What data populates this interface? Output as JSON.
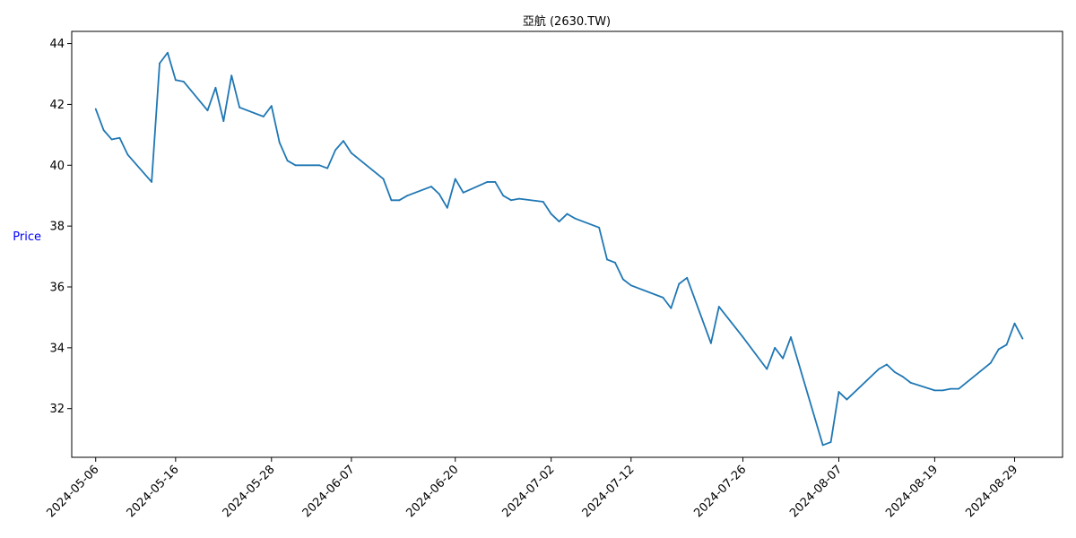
{
  "chart_data": {
    "type": "line",
    "title": "亞航 (2630.TW)",
    "xlabel": "",
    "ylabel": "Price",
    "ylim": [
      30.4,
      44.4
    ],
    "xlim": [
      "2024-05-03",
      "2024-09-04"
    ],
    "grid": false,
    "line_color": "#1f77b4",
    "ylabel_color": "#0000ff",
    "x_ticks": [
      "2024-05-06",
      "2024-05-16",
      "2024-05-28",
      "2024-06-07",
      "2024-06-20",
      "2024-07-02",
      "2024-07-12",
      "2024-07-26",
      "2024-08-07",
      "2024-08-19",
      "2024-08-29"
    ],
    "y_ticks": [
      32,
      34,
      36,
      38,
      40,
      42,
      44
    ],
    "series": [
      {
        "name": "",
        "x": [
          "2024-05-06",
          "2024-05-07",
          "2024-05-08",
          "2024-05-09",
          "2024-05-10",
          "2024-05-13",
          "2024-05-14",
          "2024-05-15",
          "2024-05-16",
          "2024-05-17",
          "2024-05-20",
          "2024-05-21",
          "2024-05-22",
          "2024-05-23",
          "2024-05-24",
          "2024-05-27",
          "2024-05-28",
          "2024-05-29",
          "2024-05-30",
          "2024-05-31",
          "2024-06-03",
          "2024-06-04",
          "2024-06-05",
          "2024-06-06",
          "2024-06-07",
          "2024-06-11",
          "2024-06-12",
          "2024-06-13",
          "2024-06-14",
          "2024-06-17",
          "2024-06-18",
          "2024-06-19",
          "2024-06-20",
          "2024-06-21",
          "2024-06-24",
          "2024-06-25",
          "2024-06-26",
          "2024-06-27",
          "2024-06-28",
          "2024-07-01",
          "2024-07-02",
          "2024-07-03",
          "2024-07-04",
          "2024-07-05",
          "2024-07-08",
          "2024-07-09",
          "2024-07-10",
          "2024-07-11",
          "2024-07-12",
          "2024-07-16",
          "2024-07-17",
          "2024-07-18",
          "2024-07-19",
          "2024-07-22",
          "2024-07-23",
          "2024-07-26",
          "2024-07-29",
          "2024-07-30",
          "2024-07-31",
          "2024-08-01",
          "2024-08-05",
          "2024-08-06",
          "2024-08-07",
          "2024-08-08",
          "2024-08-12",
          "2024-08-13",
          "2024-08-14",
          "2024-08-15",
          "2024-08-16",
          "2024-08-19",
          "2024-08-20",
          "2024-08-21",
          "2024-08-22",
          "2024-08-26",
          "2024-08-27",
          "2024-08-28",
          "2024-08-29",
          "2024-08-30"
        ],
        "values": [
          41.85,
          41.15,
          40.85,
          40.9,
          40.35,
          39.45,
          43.35,
          43.7,
          42.8,
          42.75,
          41.8,
          42.55,
          41.45,
          42.95,
          41.9,
          41.6,
          41.95,
          40.75,
          40.15,
          40.0,
          40.0,
          39.9,
          40.5,
          40.8,
          40.4,
          39.55,
          38.85,
          38.85,
          39.0,
          39.3,
          39.05,
          38.6,
          39.55,
          39.1,
          39.45,
          39.45,
          39.0,
          38.85,
          38.9,
          38.8,
          38.4,
          38.15,
          38.4,
          38.25,
          37.95,
          36.9,
          36.8,
          36.25,
          36.05,
          35.65,
          35.3,
          36.1,
          36.3,
          34.15,
          35.35,
          34.35,
          33.3,
          34.0,
          33.65,
          34.35,
          30.8,
          30.9,
          32.55,
          32.3,
          33.3,
          33.45,
          33.2,
          33.05,
          32.85,
          32.6,
          32.6,
          32.65,
          32.65,
          33.5,
          33.95,
          34.1,
          34.8,
          34.3
        ]
      }
    ]
  }
}
